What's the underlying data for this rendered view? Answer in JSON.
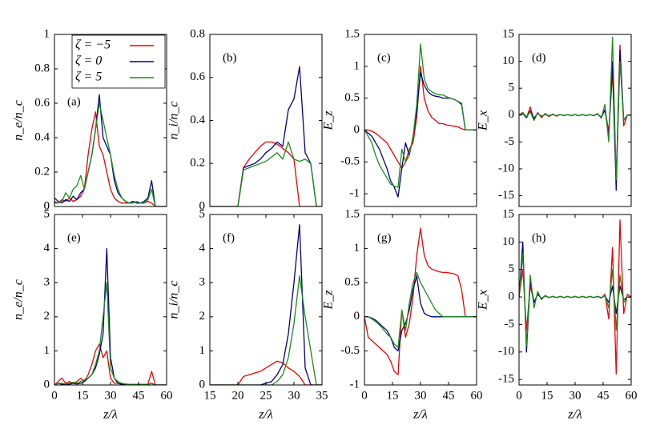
{
  "chart_data": [
    {
      "type": "line",
      "panel_label": "(a)",
      "ylabel": "n_e/n_c",
      "xlim": [
        0,
        60
      ],
      "ylim": [
        0,
        1
      ],
      "yticks": [
        0,
        0.2,
        0.4,
        0.6,
        0.8,
        1
      ],
      "legend": "upper right",
      "x": [
        0,
        2,
        4,
        6,
        8,
        10,
        12,
        14,
        16,
        18,
        20,
        22,
        24,
        26,
        28,
        30,
        32,
        34,
        36,
        38,
        40,
        42,
        44,
        46,
        48,
        50,
        52,
        54,
        56,
        58,
        60
      ],
      "series": [
        {
          "name": "ζ = −5",
          "color": "#f00000",
          "values": [
            0.03,
            0.02,
            0.04,
            0.03,
            0.05,
            0.03,
            0.04,
            0.06,
            0.1,
            0.3,
            0.45,
            0.55,
            0.35,
            0.3,
            0.2,
            0.1,
            0.05,
            0.03,
            0.02,
            0.02,
            0.02,
            0.03,
            0.02,
            0.02,
            0.02,
            0.03,
            0.02,
            0,
            0,
            0,
            0
          ]
        },
        {
          "name": "ζ = 0",
          "color": "#000080",
          "values": [
            0.05,
            0.03,
            0.02,
            0.04,
            0.03,
            0.06,
            0.04,
            0.08,
            0.1,
            0.2,
            0.3,
            0.45,
            0.65,
            0.4,
            0.35,
            0.3,
            0.15,
            0.08,
            0.05,
            0.03,
            0.02,
            0.03,
            0.02,
            0.02,
            0.03,
            0.05,
            0.15,
            0,
            0,
            0,
            0
          ]
        },
        {
          "name": "ζ = 5",
          "color": "#1a8c1a",
          "values": [
            0.02,
            0.02,
            0.03,
            0.08,
            0.05,
            0.1,
            0.12,
            0.18,
            0.1,
            0.2,
            0.3,
            0.45,
            0.6,
            0.5,
            0.4,
            0.3,
            0.18,
            0.1,
            0.05,
            0.03,
            0.02,
            0.02,
            0.03,
            0.02,
            0.02,
            0.04,
            0.1,
            0,
            0,
            0,
            0
          ]
        }
      ]
    },
    {
      "type": "line",
      "panel_label": "(b)",
      "ylabel": "n_i/n_c",
      "xlim": [
        15,
        35
      ],
      "ylim": [
        0,
        0.8
      ],
      "yticks": [
        0,
        0.2,
        0.4,
        0.6,
        0.8
      ],
      "x": [
        15,
        16,
        17,
        18,
        19,
        20,
        21,
        22,
        23,
        24,
        25,
        26,
        27,
        28,
        29,
        30,
        31,
        32,
        33,
        34,
        35
      ],
      "series": [
        {
          "color": "#f00000",
          "values": [
            0,
            0,
            0,
            0,
            0,
            0,
            0.18,
            0.22,
            0.25,
            0.28,
            0.3,
            0.3,
            0.29,
            0.27,
            0.25,
            0.22,
            0,
            0,
            0,
            0,
            0
          ]
        },
        {
          "color": "#000080",
          "values": [
            0,
            0,
            0,
            0,
            0,
            0,
            0.18,
            0.19,
            0.2,
            0.22,
            0.25,
            0.27,
            0.3,
            0.28,
            0.45,
            0.5,
            0.65,
            0.25,
            0.2,
            0,
            0
          ]
        },
        {
          "color": "#1a8c1a",
          "values": [
            0,
            0,
            0,
            0,
            0,
            0,
            0.17,
            0.18,
            0.19,
            0.2,
            0.21,
            0.23,
            0.25,
            0.22,
            0.3,
            0.22,
            0.21,
            0.22,
            0.2,
            0,
            0
          ]
        }
      ]
    },
    {
      "type": "line",
      "panel_label": "(c)",
      "ylabel": "E_z",
      "xlim": [
        0,
        60
      ],
      "ylim": [
        -1.2,
        1.5
      ],
      "yticks": [
        -1,
        -0.5,
        0,
        0.5,
        1,
        1.5
      ],
      "x": [
        0,
        2,
        4,
        6,
        8,
        10,
        12,
        14,
        16,
        18,
        20,
        22,
        24,
        26,
        28,
        30,
        32,
        34,
        36,
        38,
        40,
        42,
        44,
        46,
        48,
        50,
        52,
        54,
        56,
        58,
        60
      ],
      "series": [
        {
          "color": "#f00000",
          "values": [
            0,
            0,
            -0.02,
            -0.05,
            -0.1,
            -0.15,
            -0.2,
            -0.3,
            -0.4,
            -0.5,
            -0.6,
            -0.5,
            -0.3,
            -0.2,
            0.2,
            1.0,
            0.5,
            0.3,
            0.2,
            0.15,
            0.1,
            0.1,
            0.08,
            0.07,
            0.06,
            0.05,
            0.02,
            0,
            0,
            0,
            0
          ]
        },
        {
          "color": "#000080",
          "values": [
            0,
            -0.05,
            -0.1,
            -0.2,
            -0.3,
            -0.45,
            -0.6,
            -0.8,
            -0.9,
            -1.05,
            -0.6,
            -0.2,
            -0.4,
            -0.1,
            0.3,
            0.9,
            0.7,
            0.6,
            0.55,
            0.53,
            0.52,
            0.5,
            0.5,
            0.5,
            0.48,
            0.45,
            0.4,
            0,
            0,
            0,
            0
          ]
        },
        {
          "color": "#1a8c1a",
          "values": [
            0,
            -0.1,
            -0.2,
            -0.4,
            -0.55,
            -0.65,
            -0.75,
            -0.85,
            -0.88,
            -0.9,
            -0.3,
            -0.5,
            -0.4,
            -0.1,
            0.4,
            1.35,
            0.8,
            0.65,
            0.6,
            0.57,
            0.55,
            0.55,
            0.52,
            0.5,
            0.48,
            0.45,
            0.42,
            0,
            0,
            0,
            0
          ]
        }
      ]
    },
    {
      "type": "line",
      "panel_label": "(d)",
      "ylabel": "E_x",
      "xlim": [
        0,
        60
      ],
      "ylim": [
        -17,
        15
      ],
      "yticks": [
        -15,
        -10,
        -5,
        0,
        5,
        10,
        15
      ],
      "x": [
        0,
        2,
        4,
        6,
        8,
        10,
        12,
        14,
        16,
        18,
        20,
        22,
        24,
        26,
        28,
        30,
        32,
        34,
        36,
        38,
        40,
        42,
        44,
        46,
        48,
        50,
        52,
        54,
        56,
        58,
        60
      ],
      "series": [
        {
          "color": "#f00000",
          "values": [
            0,
            0.5,
            -0.5,
            1.5,
            -1,
            0.5,
            -0.5,
            0.3,
            -0.3,
            0.2,
            -0.2,
            0.1,
            -0.1,
            0.1,
            -0.1,
            0.1,
            -0.1,
            0.1,
            -0.1,
            0.1,
            -0.1,
            0.2,
            -0.5,
            1,
            -3,
            8,
            -12,
            13,
            -2,
            0,
            0
          ]
        },
        {
          "color": "#000080",
          "values": [
            0,
            0.3,
            -0.5,
            0.8,
            -0.6,
            0.3,
            -0.2,
            0.1,
            -0.1,
            0.1,
            -0.1,
            0.1,
            -0.1,
            0.1,
            -0.1,
            0.1,
            -0.1,
            0.1,
            -0.1,
            0.1,
            -0.1,
            0.2,
            -0.4,
            1,
            -4,
            10,
            -14,
            12,
            -1,
            0,
            0
          ]
        },
        {
          "color": "#1a8c1a",
          "values": [
            0,
            0.4,
            -0.3,
            0.6,
            -1,
            0.4,
            -0.3,
            0.2,
            -0.2,
            0.1,
            -0.1,
            0.1,
            -0.1,
            0.1,
            -0.1,
            0.1,
            -0.1,
            0.1,
            -0.1,
            0.1,
            -0.1,
            0.3,
            -0.6,
            2,
            -5,
            14.5,
            -12,
            10,
            -1,
            0,
            0
          ]
        }
      ]
    },
    {
      "type": "line",
      "panel_label": "(e)",
      "ylabel": "n_e/n_c",
      "xlabel": "z/λ",
      "xlim": [
        0,
        60
      ],
      "xticks": [
        0,
        15,
        30,
        45,
        60
      ],
      "ylim": [
        0,
        5
      ],
      "yticks": [
        0,
        1,
        2,
        3,
        4,
        5
      ],
      "x": [
        0,
        2,
        4,
        6,
        8,
        10,
        12,
        14,
        16,
        18,
        20,
        22,
        24,
        26,
        28,
        30,
        32,
        34,
        36,
        38,
        40,
        42,
        44,
        46,
        48,
        50,
        52,
        54,
        56,
        58,
        60
      ],
      "series": [
        {
          "color": "#f00000",
          "values": [
            0,
            0.1,
            0.2,
            0.05,
            0.1,
            0.05,
            0.1,
            0.2,
            0.1,
            0.3,
            0.6,
            1.0,
            1.2,
            0.8,
            1.0,
            0.2,
            0.05,
            0.05,
            0.02,
            0.02,
            0.02,
            0.02,
            0.02,
            0.02,
            0.02,
            0.02,
            0.4,
            0,
            0,
            0,
            0
          ]
        },
        {
          "color": "#000080",
          "values": [
            0,
            0.05,
            0.02,
            0.03,
            0.02,
            0.05,
            0.03,
            0.05,
            0.1,
            0.2,
            0.3,
            0.5,
            0.9,
            1.5,
            4.0,
            0.8,
            0.2,
            0.05,
            0.02,
            0.02,
            0.02,
            0.02,
            0.02,
            0.02,
            0.02,
            0.02,
            0.05,
            0,
            0,
            0,
            0
          ]
        },
        {
          "color": "#1a8c1a",
          "values": [
            0,
            0.05,
            0.05,
            0.03,
            0.05,
            0.08,
            0.05,
            0.1,
            0.15,
            0.2,
            0.3,
            0.6,
            1.0,
            2.0,
            3.0,
            0.5,
            0.2,
            0.1,
            0.05,
            0.03,
            0.02,
            0.02,
            0.02,
            0.02,
            0.02,
            0.02,
            0.05,
            0,
            0,
            0,
            0
          ]
        }
      ]
    },
    {
      "type": "line",
      "panel_label": "(f)",
      "ylabel": "n_i/n_c",
      "xlabel": "z/λ",
      "xlim": [
        15,
        35
      ],
      "xticks": [
        15,
        20,
        25,
        30,
        35
      ],
      "ylim": [
        0,
        5
      ],
      "yticks": [
        0,
        1,
        2,
        3,
        4,
        5
      ],
      "x": [
        15,
        16,
        17,
        18,
        19,
        20,
        21,
        22,
        23,
        24,
        25,
        26,
        27,
        28,
        29,
        30,
        31,
        32,
        33,
        34,
        35
      ],
      "series": [
        {
          "color": "#f00000",
          "values": [
            0,
            0,
            0,
            0,
            0,
            0,
            0.25,
            0.3,
            0.35,
            0.4,
            0.5,
            0.6,
            0.7,
            0.65,
            0.5,
            0.4,
            0.25,
            0,
            0,
            0,
            0
          ]
        },
        {
          "color": "#000080",
          "values": [
            0,
            0,
            0,
            0,
            0,
            0,
            0,
            0,
            0,
            0,
            0.05,
            0.1,
            0.3,
            0.6,
            1.5,
            3.0,
            4.7,
            0.5,
            0,
            0,
            0
          ]
        },
        {
          "color": "#1a8c1a",
          "values": [
            0,
            0,
            0,
            0,
            0,
            0,
            0,
            0,
            0,
            0,
            0,
            0,
            0.1,
            0.3,
            0.8,
            1.8,
            3.2,
            2.0,
            1.0,
            0,
            0
          ]
        }
      ]
    },
    {
      "type": "line",
      "panel_label": "(g)",
      "ylabel": "E_z",
      "xlabel": "z/λ",
      "xlim": [
        0,
        60
      ],
      "xticks": [
        0,
        15,
        30,
        45,
        60
      ],
      "ylim": [
        -1,
        1.5
      ],
      "yticks": [
        -1,
        -0.5,
        0,
        0.5,
        1,
        1.5
      ],
      "x": [
        0,
        2,
        4,
        6,
        8,
        10,
        12,
        14,
        16,
        18,
        20,
        22,
        24,
        26,
        28,
        30,
        32,
        34,
        36,
        38,
        40,
        42,
        44,
        46,
        48,
        50,
        52,
        54,
        56,
        58,
        60
      ],
      "series": [
        {
          "color": "#f00000",
          "values": [
            0,
            -0.3,
            -0.35,
            -0.4,
            -0.45,
            -0.5,
            -0.55,
            -0.65,
            -0.8,
            -0.85,
            0.1,
            -0.3,
            -0.1,
            0.3,
            0.9,
            1.3,
            0.9,
            0.75,
            0.7,
            0.68,
            0.66,
            0.65,
            0.65,
            0.64,
            0.63,
            0.6,
            0.4,
            0,
            0,
            0,
            0
          ]
        },
        {
          "color": "#000080",
          "values": [
            0,
            0,
            -0.02,
            -0.05,
            -0.1,
            -0.15,
            -0.2,
            -0.3,
            -0.45,
            -0.5,
            -0.2,
            -0.1,
            0.1,
            0.4,
            0.6,
            0.2,
            0.05,
            0.02,
            0,
            0,
            0,
            0,
            0,
            0,
            0,
            0,
            0,
            0,
            0,
            0,
            0
          ]
        },
        {
          "color": "#1a8c1a",
          "values": [
            0,
            0,
            -0.03,
            -0.07,
            -0.12,
            -0.18,
            -0.25,
            -0.3,
            -0.4,
            -0.45,
            0.1,
            -0.2,
            0.2,
            0.5,
            0.65,
            0.5,
            0.4,
            0.3,
            0.2,
            0.1,
            0.05,
            0,
            0,
            0,
            0,
            0,
            0,
            0,
            0,
            0,
            0
          ]
        }
      ]
    },
    {
      "type": "line",
      "panel_label": "(h)",
      "ylabel": "E_x",
      "xlabel": "z/λ",
      "xlim": [
        0,
        60
      ],
      "xticks": [
        0,
        15,
        30,
        45,
        60
      ],
      "ylim": [
        -16,
        15
      ],
      "yticks": [
        -15,
        -10,
        -5,
        0,
        5,
        10,
        15
      ],
      "x": [
        0,
        2,
        4,
        6,
        8,
        10,
        12,
        14,
        16,
        18,
        20,
        22,
        24,
        26,
        28,
        30,
        32,
        34,
        36,
        38,
        40,
        42,
        44,
        46,
        48,
        50,
        52,
        54,
        56,
        58,
        60
      ],
      "series": [
        {
          "color": "#f00000",
          "values": [
            0,
            5,
            -6,
            2,
            -1,
            0.5,
            -0.3,
            0.2,
            -0.1,
            0.1,
            -0.1,
            0.1,
            -0.1,
            0.1,
            -0.1,
            0.1,
            -0.1,
            0.1,
            -0.1,
            0.1,
            -0.1,
            0.1,
            -0.2,
            0.5,
            -4,
            9,
            -14,
            14,
            -3,
            0.5,
            0
          ]
        },
        {
          "color": "#000080",
          "values": [
            0,
            10,
            -10,
            3,
            -1,
            0.5,
            -0.3,
            0.2,
            -0.1,
            0.1,
            -0.1,
            0.1,
            -0.1,
            0.1,
            -0.1,
            0.1,
            -0.1,
            0.1,
            -0.1,
            0.1,
            -0.1,
            0.1,
            -0.1,
            0.2,
            -1,
            2,
            -3,
            2,
            -0.5,
            0,
            0
          ]
        },
        {
          "color": "#1a8c1a",
          "values": [
            0,
            8,
            -9,
            4,
            -2,
            1,
            -0.5,
            0.3,
            -0.1,
            0.1,
            -0.1,
            0.1,
            -0.1,
            0.1,
            -0.1,
            0.1,
            -0.1,
            0.1,
            -0.1,
            0.1,
            -0.1,
            0.1,
            -0.2,
            0.3,
            -2,
            5,
            -6,
            4,
            -1,
            0,
            0
          ]
        }
      ]
    }
  ]
}
